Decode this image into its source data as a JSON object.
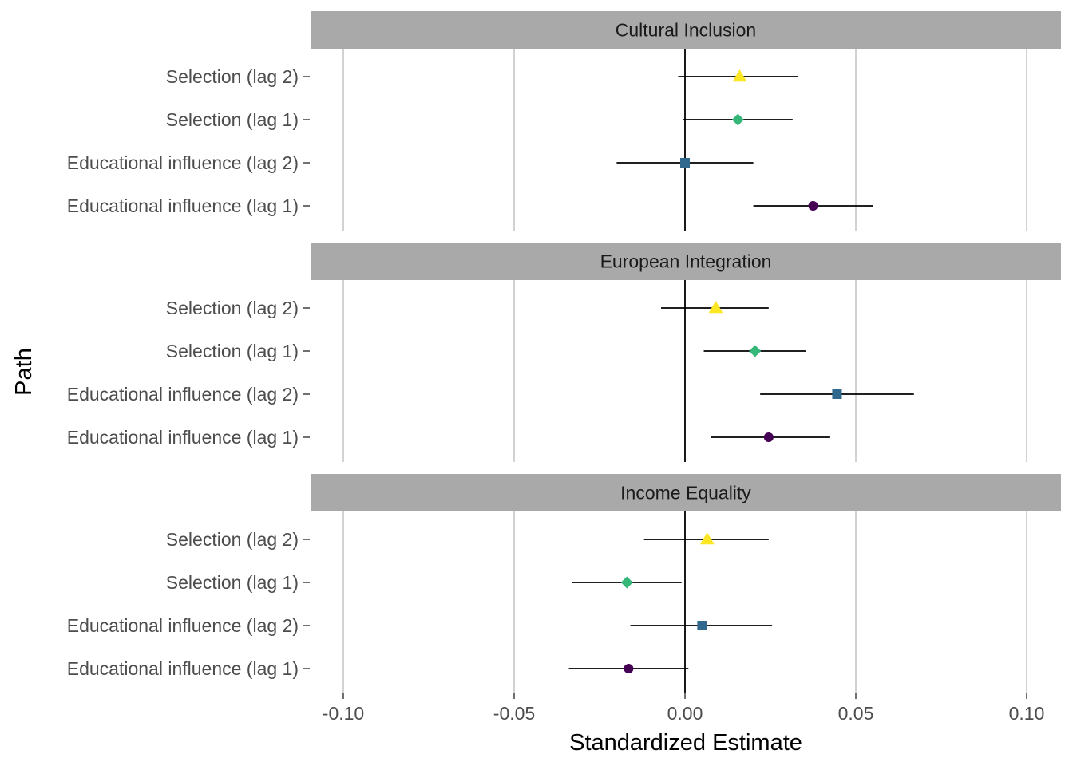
{
  "chart_data": {
    "type": "forest",
    "xlabel": "Standardized Estimate",
    "ylabel": "Path",
    "xlim": [
      -0.11,
      0.11
    ],
    "xticks": [
      -0.1,
      -0.05,
      0.0,
      0.05,
      0.1
    ],
    "xtick_labels": [
      "-0.10",
      "-0.05",
      "0.00",
      "0.05",
      "0.10"
    ],
    "reference_line": 0,
    "categories": [
      "Selection (lag 2)",
      "Selection (lag 1)",
      "Educational influence (lag 2)",
      "Educational influence (lag 1)"
    ],
    "category_styles": [
      {
        "shape": "triangle",
        "color": "#fde725"
      },
      {
        "shape": "diamond",
        "color": "#35b779"
      },
      {
        "shape": "square",
        "color": "#31688e"
      },
      {
        "shape": "circle",
        "color": "#440154"
      }
    ],
    "grid": true,
    "panels": [
      {
        "title": "Cultural Inclusion",
        "estimates": [
          0.016,
          0.0155,
          0.0,
          0.0375
        ],
        "lower": [
          -0.002,
          -0.0005,
          -0.02,
          0.02
        ],
        "upper": [
          0.033,
          0.0315,
          0.02,
          0.055
        ]
      },
      {
        "title": "European Integration",
        "estimates": [
          0.009,
          0.0205,
          0.0445,
          0.0245
        ],
        "lower": [
          -0.007,
          0.0055,
          0.022,
          0.0075
        ],
        "upper": [
          0.0245,
          0.0355,
          0.067,
          0.0425
        ]
      },
      {
        "title": "Income Equality",
        "estimates": [
          0.0065,
          -0.017,
          0.005,
          -0.0165
        ],
        "lower": [
          -0.012,
          -0.033,
          -0.016,
          -0.034
        ],
        "upper": [
          0.0245,
          -0.001,
          0.0255,
          0.001
        ]
      }
    ]
  }
}
